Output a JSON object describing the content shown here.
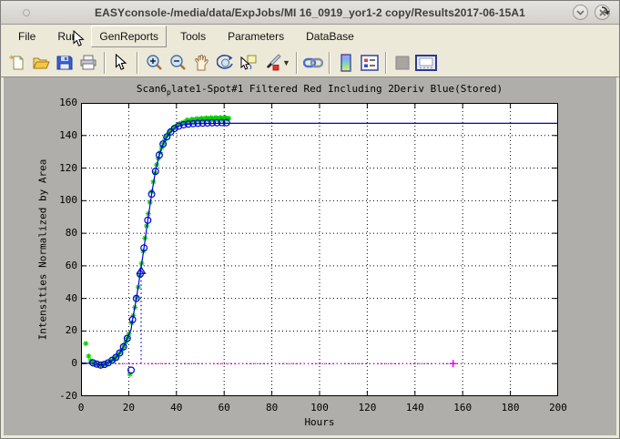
{
  "window": {
    "title": "EASYconsole-/media/data/ExpJobs/MI 16_0919_yor1-2 copy/Results2017-06-15A1",
    "controls": [
      {
        "id": "minimize",
        "icon": "chevron-down-icon"
      },
      {
        "id": "close",
        "icon": "close-x-icon"
      }
    ]
  },
  "menu": {
    "items": [
      "File",
      "Run",
      "GenReports",
      "Tools",
      "Parameters",
      "DataBase"
    ],
    "active_item": "GenReports",
    "overflow_icon": "curved-arrow-icon"
  },
  "toolbar": {
    "buttons": [
      {
        "id": "new-figure",
        "icon": "new-document-icon"
      },
      {
        "id": "open-file",
        "icon": "open-folder-icon"
      },
      {
        "id": "save",
        "icon": "floppy-disk-icon"
      },
      {
        "id": "print",
        "icon": "printer-icon"
      },
      {
        "id": "edit-plot",
        "icon": "arrow-cursor-icon"
      },
      {
        "id": "zoom-in",
        "icon": "zoom-in-icon"
      },
      {
        "id": "zoom-out",
        "icon": "zoom-out-icon"
      },
      {
        "id": "pan",
        "icon": "hand-icon"
      },
      {
        "id": "rotate-3d",
        "icon": "rotate-3d-icon"
      },
      {
        "id": "data-cursor",
        "icon": "data-cursor-icon"
      },
      {
        "id": "brush-data",
        "icon": "brush-icon",
        "has_dropdown": true
      },
      {
        "id": "link-plot",
        "icon": "chain-link-icon"
      },
      {
        "id": "insert-colorbar",
        "icon": "colorbar-icon"
      },
      {
        "id": "insert-legend",
        "icon": "legend-icon"
      },
      {
        "id": "disabled-tool",
        "icon": "gray-square-icon",
        "disabled": true
      },
      {
        "id": "dock-figure",
        "icon": "dock-window-icon"
      }
    ]
  },
  "figure": {
    "title_pre": "Scan6",
    "title_sub": "p",
    "title_post": "late1-Spot#1 Filtered Red Including 2Deriv Blue(Stored)"
  },
  "chart_data": {
    "type": "scatter",
    "title": "Scan6_plate1-Spot#1 Filtered Red Including 2Deriv Blue(Stored)",
    "xlabel": "Hours",
    "ylabel": "Intensities Normalized by Area",
    "xlim": [
      0,
      200
    ],
    "ylim": [
      -20,
      160
    ],
    "xticks": [
      0,
      20,
      40,
      60,
      80,
      100,
      120,
      140,
      160,
      180,
      200
    ],
    "yticks": [
      -20,
      0,
      20,
      40,
      60,
      80,
      100,
      120,
      140,
      160
    ],
    "grid": true,
    "colors": {
      "data_green": "#00cc00",
      "fit_blue": "#0000dd",
      "baseline_magenta": "#e800e8",
      "grid_black": "#000000"
    },
    "series": [
      {
        "name": "filtered-red-data",
        "marker": "asterisk",
        "color": "#00cc00",
        "points": [
          [
            2,
            12.3
          ],
          [
            3.2,
            4.6
          ],
          [
            4,
            1.8
          ],
          [
            4.7,
            0.9
          ],
          [
            5.4,
            0.4
          ],
          [
            6.1,
            0
          ],
          [
            6.8,
            -0.4
          ],
          [
            7.5,
            -0.7
          ],
          [
            8.2,
            -0.9
          ],
          [
            8.9,
            -0.8
          ],
          [
            9.6,
            -0.6
          ],
          [
            10.3,
            -0.2
          ],
          [
            11,
            0.3
          ],
          [
            11.7,
            0.8
          ],
          [
            12.4,
            1.4
          ],
          [
            13.1,
            2
          ],
          [
            13.8,
            2.8
          ],
          [
            14.5,
            3.7
          ],
          [
            15.2,
            4.7
          ],
          [
            15.9,
            5.9
          ],
          [
            16.6,
            7.3
          ],
          [
            17.3,
            8.9
          ],
          [
            18,
            10.8
          ],
          [
            18.7,
            13
          ],
          [
            19.4,
            15.5
          ],
          [
            20.1,
            18.4
          ],
          [
            20.5,
            -6.5
          ],
          [
            21.2,
            25
          ],
          [
            21.9,
            29.5
          ],
          [
            22.6,
            34.5
          ],
          [
            23.3,
            40.5
          ],
          [
            24,
            47
          ],
          [
            24.7,
            54
          ],
          [
            25.4,
            61.5
          ],
          [
            26.1,
            69
          ],
          [
            26.8,
            77
          ],
          [
            27.5,
            84.5
          ],
          [
            28.2,
            92
          ],
          [
            28.9,
            99
          ],
          [
            29.6,
            105.5
          ],
          [
            30.3,
            111.5
          ],
          [
            31,
            117
          ],
          [
            31.7,
            122
          ],
          [
            32.4,
            126
          ],
          [
            33.1,
            129.5
          ],
          [
            33.8,
            132.5
          ],
          [
            34.5,
            135
          ],
          [
            35.2,
            137.5
          ],
          [
            35.9,
            139.5
          ],
          [
            36.6,
            141
          ],
          [
            37.3,
            142.5
          ],
          [
            38,
            143.5
          ],
          [
            38.7,
            144.5
          ],
          [
            39.4,
            145.3
          ],
          [
            40.1,
            146
          ],
          [
            41,
            146.8
          ],
          [
            42,
            147.5
          ],
          [
            43,
            148
          ],
          [
            44,
            148.5
          ],
          [
            45,
            148.9
          ],
          [
            46,
            149.2
          ],
          [
            47,
            149.5
          ],
          [
            48,
            149.7
          ],
          [
            49,
            149.9
          ],
          [
            50,
            150
          ],
          [
            51,
            150.1
          ],
          [
            52,
            150.2
          ],
          [
            53,
            150.3
          ],
          [
            54,
            150.3
          ],
          [
            55,
            150.4
          ],
          [
            56,
            150.4
          ],
          [
            57,
            150.5
          ],
          [
            58,
            150.5
          ],
          [
            59,
            150.5
          ],
          [
            60,
            150.5
          ],
          [
            61,
            150.5
          ],
          [
            62,
            150.5
          ],
          [
            44.5,
            149.6
          ],
          [
            46.5,
            150
          ],
          [
            48.5,
            150.3
          ],
          [
            50.5,
            150.6
          ],
          [
            52.5,
            150.8
          ],
          [
            54.5,
            150.9
          ],
          [
            56.5,
            151
          ],
          [
            58.5,
            151
          ],
          [
            60.5,
            151
          ],
          [
            45.5,
            148.4
          ],
          [
            47.5,
            148.7
          ],
          [
            49.5,
            149
          ],
          [
            51.5,
            149.2
          ],
          [
            53.5,
            149.3
          ],
          [
            55.5,
            149.4
          ],
          [
            57.5,
            149.5
          ],
          [
            59.5,
            149.6
          ],
          [
            61.5,
            149.7
          ]
        ]
      },
      {
        "name": "logistic-fit-line",
        "type": "line",
        "style": "solid",
        "color": "#0000dd",
        "points": [
          [
            0,
            0.4
          ],
          [
            3,
            0.2
          ],
          [
            5,
            0.1
          ],
          [
            6.6,
            -0.3
          ],
          [
            8.2,
            -0.9
          ],
          [
            9.8,
            -0.5
          ],
          [
            11.4,
            0.5
          ],
          [
            13,
            2
          ],
          [
            14.6,
            3.8
          ],
          [
            16.2,
            6.5
          ],
          [
            17.8,
            10.3
          ],
          [
            19.4,
            15.5
          ],
          [
            21,
            21
          ],
          [
            21.6,
            27
          ],
          [
            23.2,
            40
          ],
          [
            24.8,
            55
          ],
          [
            26.4,
            71
          ],
          [
            28,
            88
          ],
          [
            29.6,
            104
          ],
          [
            31.2,
            118
          ],
          [
            32.8,
            128
          ],
          [
            34.4,
            134.8
          ],
          [
            36,
            139.2
          ],
          [
            37.6,
            142.2
          ],
          [
            39.2,
            144.3
          ],
          [
            41,
            145.8
          ],
          [
            43,
            146.6
          ],
          [
            45,
            147
          ],
          [
            48,
            147.3
          ],
          [
            52,
            147.4
          ],
          [
            60,
            147.5
          ],
          [
            80,
            147.5
          ],
          [
            200,
            147.5
          ]
        ]
      },
      {
        "name": "fit-sample-points",
        "marker": "circle",
        "color": "#0000dd",
        "points": [
          [
            5,
            0.5
          ],
          [
            6.6,
            -0.3
          ],
          [
            8.2,
            -0.9
          ],
          [
            9.8,
            -0.5
          ],
          [
            11.4,
            0.5
          ],
          [
            13,
            2
          ],
          [
            14.6,
            3.8
          ],
          [
            16.2,
            6.5
          ],
          [
            17.8,
            10.3
          ],
          [
            19.4,
            15.5
          ],
          [
            21,
            -4
          ],
          [
            21.6,
            27
          ],
          [
            23.2,
            40
          ],
          [
            24.8,
            55
          ],
          [
            26.4,
            71
          ],
          [
            28,
            88
          ],
          [
            29.6,
            104
          ],
          [
            31.2,
            118
          ],
          [
            32.8,
            128
          ],
          [
            34.4,
            134.8
          ],
          [
            36,
            139.2
          ],
          [
            37.6,
            142.2
          ],
          [
            39.2,
            144.3
          ],
          [
            41,
            145.8
          ],
          [
            43,
            146.6
          ],
          [
            45,
            147
          ],
          [
            47,
            147.3
          ],
          [
            49,
            147.5
          ],
          [
            51,
            147.6
          ],
          [
            53,
            147.7
          ],
          [
            55,
            147.8
          ],
          [
            57,
            147.8
          ],
          [
            59,
            147.9
          ],
          [
            61,
            147.9
          ]
        ]
      },
      {
        "name": "inflection-dropline",
        "type": "line",
        "style": "dotted",
        "color": "#0000dd",
        "points": [
          [
            25.2,
            0
          ],
          [
            25.2,
            53
          ]
        ]
      },
      {
        "name": "inflection-marker",
        "marker": "triangle",
        "color": "#0000dd",
        "points": [
          [
            25.2,
            57
          ]
        ]
      },
      {
        "name": "baseline-2deriv",
        "type": "line",
        "style": "dotted",
        "color": "#e800e8",
        "points": [
          [
            4,
            0
          ],
          [
            156,
            0
          ]
        ]
      },
      {
        "name": "baseline-end-marker",
        "marker": "plus",
        "color": "#e800e8",
        "points": [
          [
            156,
            0
          ]
        ]
      }
    ]
  }
}
